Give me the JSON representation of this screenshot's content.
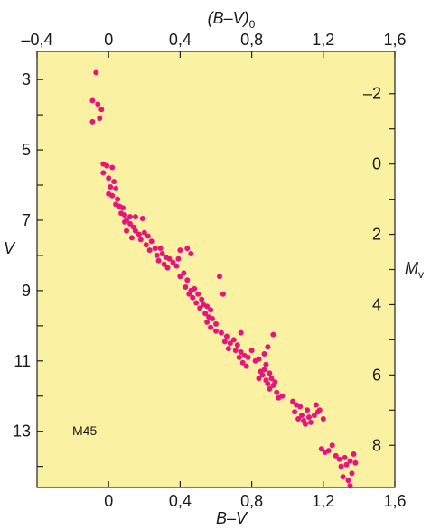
{
  "chart_data": {
    "type": "scatter",
    "annotation": "M45",
    "colors": {
      "plot_bg": "#fbf1a3",
      "points": "#e6157d",
      "frame": "#222222"
    },
    "x_axis": {
      "bottom": {
        "title": "B–V",
        "range": [
          -0.4,
          1.6
        ],
        "ticks": [
          0,
          0.4,
          0.8,
          1.2,
          1.6
        ],
        "tick_labels": [
          "0",
          "0,4",
          "0,8",
          "1,2",
          "1,6"
        ]
      },
      "top": {
        "title": "(B–V)",
        "title_subscript": "0",
        "range": [
          -0.4,
          1.6
        ],
        "ticks": [
          -0.4,
          0,
          0.4,
          0.8,
          1.2,
          1.6
        ],
        "tick_labels": [
          "–0,4",
          "0",
          "0,4",
          "0,8",
          "1,2",
          "1,6"
        ]
      }
    },
    "y_axis": {
      "left": {
        "title": "V",
        "range": [
          14.6,
          2.2
        ],
        "inverted": true,
        "ticks": [
          3,
          5,
          7,
          9,
          11,
          13
        ],
        "tick_labels": [
          "3",
          "5",
          "7",
          "9",
          "11",
          "13"
        ],
        "minor_ticks": [
          4,
          6,
          8,
          10,
          12,
          14
        ]
      },
      "right": {
        "title": "M",
        "title_subscript": "v",
        "range": [
          9.2,
          -3.2
        ],
        "inverted": true,
        "ticks": [
          -2,
          0,
          2,
          4,
          6,
          8
        ],
        "tick_labels": [
          "–2",
          "0",
          "2",
          "4",
          "6",
          "8"
        ],
        "minor_ticks": [
          -1,
          1,
          3,
          5,
          7
        ]
      }
    },
    "points": [
      [
        -0.07,
        2.8
      ],
      [
        -0.09,
        3.6
      ],
      [
        -0.06,
        3.7
      ],
      [
        -0.04,
        3.85
      ],
      [
        -0.09,
        4.2
      ],
      [
        -0.05,
        4.1
      ],
      [
        -0.03,
        5.4
      ],
      [
        -0.01,
        5.45
      ],
      [
        0.02,
        5.5
      ],
      [
        -0.03,
        5.65
      ],
      [
        0.0,
        5.8
      ],
      [
        0.03,
        5.9
      ],
      [
        0.01,
        6.05
      ],
      [
        0.04,
        6.1
      ],
      [
        0.0,
        6.25
      ],
      [
        0.02,
        6.3
      ],
      [
        0.05,
        6.4
      ],
      [
        0.04,
        6.55
      ],
      [
        0.06,
        6.6
      ],
      [
        0.08,
        6.65
      ],
      [
        0.07,
        6.8
      ],
      [
        0.09,
        6.85
      ],
      [
        0.12,
        6.9
      ],
      [
        0.1,
        7.0
      ],
      [
        0.15,
        6.9
      ],
      [
        0.19,
        6.95
      ],
      [
        0.09,
        7.05
      ],
      [
        0.12,
        7.1
      ],
      [
        0.14,
        7.2
      ],
      [
        0.1,
        7.3
      ],
      [
        0.15,
        7.3
      ],
      [
        0.17,
        7.4
      ],
      [
        0.2,
        7.35
      ],
      [
        0.22,
        7.45
      ],
      [
        0.13,
        7.5
      ],
      [
        0.18,
        7.55
      ],
      [
        0.24,
        7.6
      ],
      [
        0.21,
        7.7
      ],
      [
        0.26,
        7.8
      ],
      [
        0.23,
        7.85
      ],
      [
        0.29,
        7.8
      ],
      [
        0.3,
        7.95
      ],
      [
        0.27,
        8.0
      ],
      [
        0.32,
        8.05
      ],
      [
        0.34,
        8.1
      ],
      [
        0.28,
        8.15
      ],
      [
        0.36,
        8.2
      ],
      [
        0.31,
        8.25
      ],
      [
        0.33,
        8.35
      ],
      [
        0.38,
        8.3
      ],
      [
        0.4,
        7.85
      ],
      [
        0.44,
        7.8
      ],
      [
        0.46,
        7.95
      ],
      [
        0.39,
        8.1
      ],
      [
        0.42,
        8.5
      ],
      [
        0.4,
        8.6
      ],
      [
        0.44,
        8.7
      ],
      [
        0.43,
        8.9
      ],
      [
        0.46,
        9.0
      ],
      [
        0.48,
        8.95
      ],
      [
        0.45,
        9.1
      ],
      [
        0.5,
        9.1
      ],
      [
        0.47,
        9.2
      ],
      [
        0.52,
        9.25
      ],
      [
        0.49,
        9.35
      ],
      [
        0.53,
        9.4
      ],
      [
        0.51,
        9.5
      ],
      [
        0.55,
        9.45
      ],
      [
        0.57,
        9.55
      ],
      [
        0.54,
        9.65
      ],
      [
        0.56,
        9.75
      ],
      [
        0.58,
        9.8
      ],
      [
        0.55,
        9.9
      ],
      [
        0.6,
        9.95
      ],
      [
        0.57,
        10.05
      ],
      [
        0.62,
        8.6
      ],
      [
        0.64,
        9.1
      ],
      [
        0.6,
        10.15
      ],
      [
        0.63,
        10.2
      ],
      [
        0.66,
        10.3
      ],
      [
        0.65,
        10.45
      ],
      [
        0.68,
        10.5
      ],
      [
        0.7,
        10.4
      ],
      [
        0.72,
        10.55
      ],
      [
        0.67,
        10.65
      ],
      [
        0.71,
        10.7
      ],
      [
        0.74,
        10.75
      ],
      [
        0.73,
        10.9
      ],
      [
        0.76,
        10.85
      ],
      [
        0.75,
        11.05
      ],
      [
        0.77,
        11.15
      ],
      [
        0.74,
        10.2
      ],
      [
        0.78,
        10.9
      ],
      [
        0.8,
        10.7
      ],
      [
        0.82,
        11.0
      ],
      [
        0.84,
        10.95
      ],
      [
        0.85,
        11.3
      ],
      [
        0.86,
        11.4
      ],
      [
        0.87,
        11.25
      ],
      [
        0.84,
        11.5
      ],
      [
        0.88,
        11.55
      ],
      [
        0.9,
        11.35
      ],
      [
        0.91,
        11.5
      ],
      [
        0.89,
        11.65
      ],
      [
        0.92,
        11.7
      ],
      [
        0.93,
        11.6
      ],
      [
        0.9,
        11.8
      ],
      [
        0.88,
        11.1
      ],
      [
        0.87,
        10.8
      ],
      [
        0.89,
        10.6
      ],
      [
        0.92,
        10.25
      ],
      [
        0.94,
        11.9
      ],
      [
        0.95,
        12.05
      ],
      [
        0.97,
        12.0
      ],
      [
        1.03,
        12.15
      ],
      [
        1.05,
        12.25
      ],
      [
        1.07,
        12.3
      ],
      [
        1.04,
        12.45
      ],
      [
        1.08,
        12.55
      ],
      [
        1.06,
        12.65
      ],
      [
        1.09,
        12.7
      ],
      [
        1.11,
        12.4
      ],
      [
        1.12,
        12.6
      ],
      [
        1.1,
        12.8
      ],
      [
        1.13,
        12.75
      ],
      [
        1.15,
        12.55
      ],
      [
        1.17,
        12.45
      ],
      [
        1.16,
        12.25
      ],
      [
        1.18,
        12.4
      ],
      [
        1.2,
        12.65
      ],
      [
        1.19,
        13.5
      ],
      [
        1.21,
        13.6
      ],
      [
        1.23,
        13.55
      ],
      [
        1.25,
        13.4
      ],
      [
        1.27,
        13.7
      ],
      [
        1.29,
        13.8
      ],
      [
        1.3,
        14.0
      ],
      [
        1.32,
        13.75
      ],
      [
        1.33,
        13.95
      ],
      [
        1.35,
        13.85
      ],
      [
        1.36,
        14.2
      ],
      [
        1.34,
        14.4
      ],
      [
        1.31,
        14.3
      ],
      [
        1.38,
        13.9
      ],
      [
        1.35,
        14.55
      ],
      [
        1.37,
        13.65
      ]
    ]
  }
}
